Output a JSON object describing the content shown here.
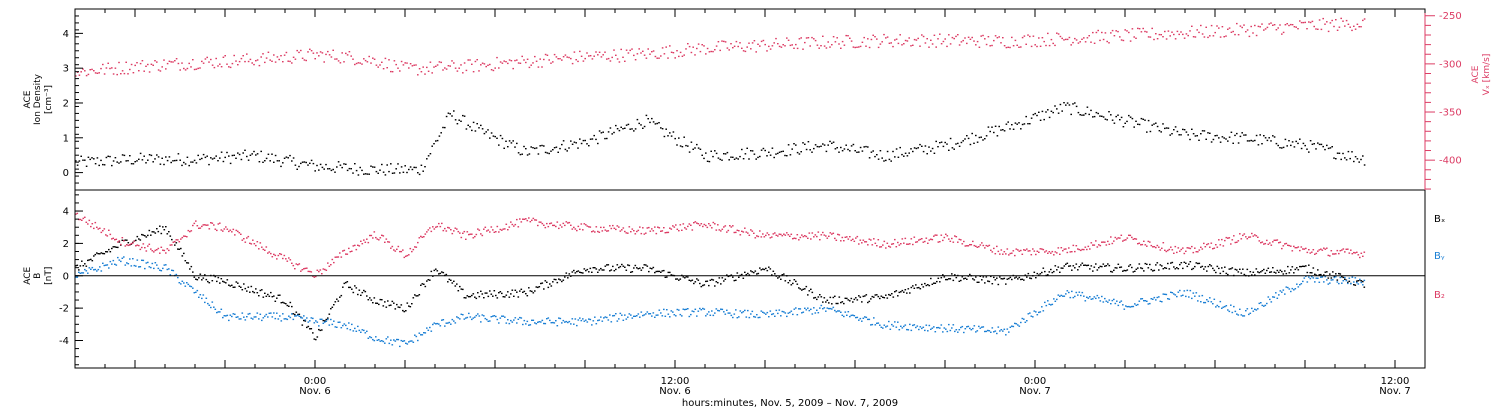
{
  "colors": {
    "black": "#000000",
    "pink": "#dc3c64",
    "blue": "#1a7fd4"
  },
  "chart_data": [
    {
      "type": "scatter",
      "panel": "top",
      "left_axis": {
        "title_lines": [
          "ACE",
          "Ion Density"
        ],
        "unit": "[cm⁻³]",
        "ylim": [
          -0.5,
          4.7
        ],
        "ticks": [
          0,
          1,
          2,
          3,
          4
        ],
        "tick_labels": [
          "0",
          "1",
          "2",
          "3",
          "4"
        ]
      },
      "right_axis": {
        "title": "ACE",
        "title_line2": "Vₓ [km/s]",
        "ylim": [
          -431,
          -243
        ],
        "ticks": [
          -400,
          -350,
          -300,
          -250
        ],
        "tick_labels": [
          "-400",
          "-350",
          "-300",
          "-250"
        ],
        "color": "#dc3c64"
      },
      "x_hours": [
        -8,
        37
      ],
      "series": [
        {
          "color": "#000000",
          "axis": "left",
          "x": [
            -8,
            -6,
            -4,
            -2,
            0,
            2,
            3.5,
            4.5,
            5.5,
            7,
            9,
            11,
            13,
            15,
            17,
            19,
            21,
            23,
            25,
            27,
            29,
            31,
            33,
            35
          ],
          "y": [
            0.3,
            0.4,
            0.4,
            0.5,
            0.2,
            0.1,
            0.1,
            1.7,
            1.2,
            0.6,
            0.9,
            1.5,
            0.5,
            0.6,
            0.8,
            0.5,
            0.8,
            1.3,
            1.9,
            1.5,
            1.1,
            1.0,
            0.8,
            0.4
          ]
        },
        {
          "color": "#dc3c64",
          "axis": "right",
          "x": [
            -8,
            -6,
            -4,
            -2,
            0,
            1,
            2,
            3,
            5,
            7,
            9,
            11,
            13,
            15,
            17,
            19,
            21,
            23,
            25,
            27,
            29,
            31,
            33,
            35
          ],
          "y": [
            -308,
            -302,
            -298,
            -295,
            -290,
            -292,
            -296,
            -305,
            -302,
            -297,
            -292,
            -289,
            -283,
            -280,
            -277,
            -275,
            -275,
            -276,
            -273,
            -270,
            -267,
            -264,
            -260,
            -257
          ]
        }
      ]
    },
    {
      "type": "scatter",
      "panel": "bottom",
      "left_axis": {
        "title_lines": [
          "ACE",
          "B"
        ],
        "unit": "[nT]",
        "ylim": [
          -5.7,
          5.3
        ],
        "ticks": [
          -4,
          -2,
          0,
          2,
          4
        ],
        "tick_labels": [
          "-4",
          "-2",
          "0",
          "2",
          "4"
        ]
      },
      "x_hours": [
        -8,
        37
      ],
      "x_tick_labels": [
        {
          "hour": 0,
          "time": "0:00",
          "date": "Nov. 6"
        },
        {
          "hour": 12,
          "time": "12:00",
          "date": "Nov. 6"
        },
        {
          "hour": 24,
          "time": "0:00",
          "date": "Nov. 7"
        },
        {
          "hour": 36,
          "time": "12:00",
          "date": "Nov. 7"
        }
      ],
      "xlabel": "hours:minutes, Nov.  5, 2009 – Nov.  7, 2009",
      "legend": [
        {
          "label": "Bₓ",
          "color": "#000000"
        },
        {
          "label": "Bᵧ",
          "color": "#1a7fd4"
        },
        {
          "label": "B₂",
          "color": "#dc3c64"
        }
      ],
      "series": [
        {
          "name": "Bₓ",
          "color": "#000000",
          "x": [
            -8,
            -6.5,
            -5,
            -4,
            -3,
            -1,
            0,
            1,
            2,
            3,
            4,
            5,
            7,
            9,
            11,
            13,
            15,
            17,
            19,
            21,
            23,
            25,
            27,
            29,
            31,
            33,
            35
          ],
          "y": [
            0.5,
            2.0,
            3.0,
            0.0,
            -0.3,
            -1.5,
            -3.8,
            -0.5,
            -1.5,
            -2.0,
            0.5,
            -1.2,
            -1.0,
            0.5,
            0.5,
            -0.5,
            0.5,
            -1.5,
            -1.3,
            0.0,
            -0.3,
            0.6,
            0.5,
            0.7,
            0.2,
            0.5,
            -0.5
          ]
        },
        {
          "name": "Bᵧ",
          "color": "#1a7fd4",
          "x": [
            -8,
            -6.5,
            -5,
            -4,
            -3,
            -1,
            0,
            1,
            2,
            3,
            4,
            5,
            7,
            9,
            11,
            13,
            15,
            17,
            19,
            21,
            23,
            25,
            27,
            29,
            31,
            33,
            35
          ],
          "y": [
            0.0,
            1.0,
            0.5,
            -1.0,
            -2.5,
            -2.5,
            -2.8,
            -3.0,
            -3.8,
            -4.2,
            -3.0,
            -2.5,
            -2.8,
            -2.8,
            -2.3,
            -2.2,
            -2.4,
            -2.0,
            -3.0,
            -3.2,
            -3.4,
            -1.0,
            -1.8,
            -1.0,
            -2.3,
            -0.2,
            -0.3
          ]
        },
        {
          "name": "B₂",
          "color": "#dc3c64",
          "x": [
            -8,
            -6.5,
            -5,
            -4,
            -3,
            -1,
            0,
            1,
            2,
            3,
            4,
            5,
            7,
            9,
            11,
            13,
            15,
            17,
            19,
            21,
            23,
            25,
            27,
            29,
            31,
            33,
            35
          ],
          "y": [
            3.8,
            2.2,
            1.5,
            3.2,
            3.0,
            1.0,
            0.1,
            1.5,
            2.6,
            1.3,
            3.2,
            2.5,
            3.4,
            3.0,
            2.8,
            3.2,
            2.5,
            2.5,
            2.0,
            2.4,
            1.5,
            1.6,
            2.4,
            1.5,
            2.5,
            1.6,
            1.4
          ]
        }
      ]
    }
  ]
}
